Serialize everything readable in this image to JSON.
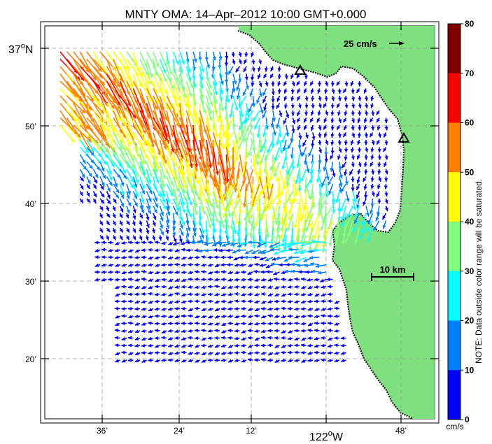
{
  "title": "MNTY OMA: 14–Apr–2012 10:00 GMT+0.000",
  "lat_labels": [
    {
      "text": "37",
      "sup": "o",
      "tail": "N"
    },
    {
      "text": "50’"
    },
    {
      "text": "40’"
    },
    {
      "text": "30’"
    },
    {
      "text": "20’"
    }
  ],
  "lon_labels": [
    {
      "text": "36’"
    },
    {
      "text": "24’"
    },
    {
      "text": "12’"
    },
    {
      "text": "122",
      "sup": "o",
      "tail": "W"
    },
    {
      "text": "48’"
    }
  ],
  "scale_vector_label": "25 cm/s",
  "distance_scale_label": "10 km",
  "note": "NOTE: Data outside color range will be saturated.",
  "colorbar": {
    "unit": "cm/s",
    "ticks": [
      "80",
      "70",
      "60",
      "50",
      "40",
      "30",
      "20",
      "10",
      "0"
    ],
    "colors": [
      "#800000",
      "#ff0000",
      "#ff8000",
      "#ffff00",
      "#80ff80",
      "#00ffff",
      "#0080ff",
      "#0000ff"
    ]
  },
  "colors": {
    "land": "#7ee07e",
    "coast": "#1a1a1a",
    "grid": "#9a9a9a"
  },
  "station_markers": [
    "triangle-marker",
    "triangle-marker"
  ]
}
